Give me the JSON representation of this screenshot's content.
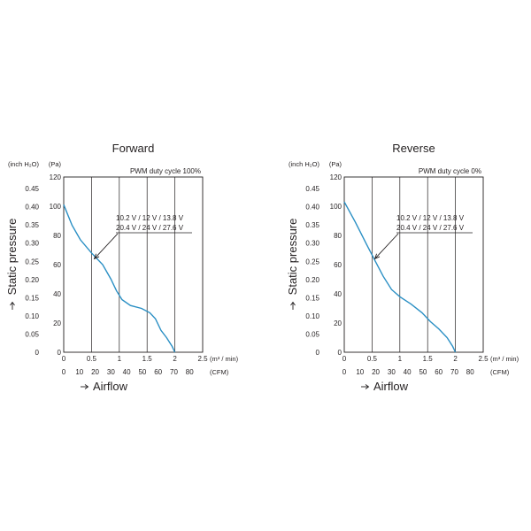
{
  "chart_data": [
    {
      "type": "line",
      "title": "Forward",
      "annotation": "PWM duty cycle 100%",
      "voltage_labels": [
        "10.2 V / 12 V / 13.8 V",
        "20.4 V / 24 V / 27.6 V"
      ],
      "xlabel": "Airflow",
      "ylabel": "Static pressure",
      "x_unit": "(m³ / min)",
      "x2_unit": "(CFM)",
      "y_unit": "(Pa)",
      "y2_unit": "(inch H₂O)",
      "xlim": [
        0,
        2.5
      ],
      "ylim": [
        0,
        120
      ],
      "x_ticks": [
        "0",
        "0.5",
        "1",
        "1.5",
        "2",
        "2.5"
      ],
      "x2_ticks": [
        "0",
        "10",
        "20",
        "30",
        "40",
        "50",
        "60",
        "70",
        "80"
      ],
      "y_ticks": [
        "0",
        "20",
        "40",
        "60",
        "80",
        "100",
        "120"
      ],
      "y2_ticks": [
        "0",
        "0.05",
        "0.10",
        "0.15",
        "0.20",
        "0.25",
        "0.30",
        "0.35",
        "0.40",
        "0.45"
      ],
      "grid": true,
      "series": [
        {
          "x": [
            0,
            0.15,
            0.3,
            0.5,
            0.7,
            0.85,
            0.95,
            1.05,
            1.2,
            1.4,
            1.55,
            1.65,
            1.75,
            1.85,
            1.95,
            2.0
          ],
          "y": [
            101,
            87,
            77,
            68,
            60,
            50,
            42,
            36,
            32,
            30,
            27,
            23,
            15,
            10,
            4,
            0
          ]
        }
      ]
    },
    {
      "type": "line",
      "title": "Reverse",
      "annotation": "PWM duty cycle 0%",
      "voltage_labels": [
        "10.2 V / 12 V / 13.8 V",
        "20.4 V / 24 V / 27.6 V"
      ],
      "xlabel": "Airflow",
      "ylabel": "Static pressure",
      "x_unit": "(m³ / min)",
      "x2_unit": "(CFM)",
      "y_unit": "(Pa)",
      "y2_unit": "(inch H₂O)",
      "xlim": [
        0,
        2.5
      ],
      "ylim": [
        0,
        120
      ],
      "x_ticks": [
        "0",
        "0.5",
        "1",
        "1.5",
        "2",
        "2.5"
      ],
      "x2_ticks": [
        "0",
        "10",
        "20",
        "30",
        "40",
        "50",
        "60",
        "70",
        "80"
      ],
      "y_ticks": [
        "0",
        "20",
        "40",
        "60",
        "80",
        "100",
        "120"
      ],
      "y2_ticks": [
        "0",
        "0.05",
        "0.10",
        "0.15",
        "0.20",
        "0.25",
        "0.30",
        "0.35",
        "0.40",
        "0.45"
      ],
      "grid": true,
      "series": [
        {
          "x": [
            0,
            0.2,
            0.4,
            0.55,
            0.7,
            0.85,
            1.0,
            1.2,
            1.4,
            1.55,
            1.7,
            1.85,
            1.95,
            2.0
          ],
          "y": [
            103,
            89,
            74,
            63,
            52,
            43,
            38,
            33,
            27,
            21,
            16,
            10,
            4,
            0
          ]
        }
      ]
    }
  ]
}
